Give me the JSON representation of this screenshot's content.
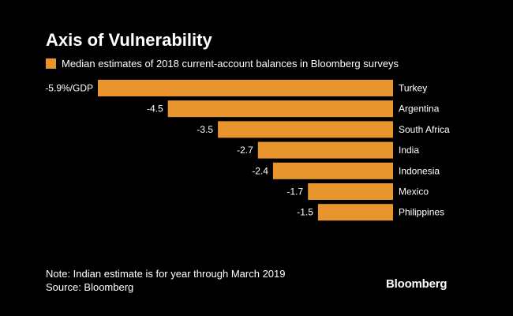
{
  "chart_data": {
    "type": "bar",
    "orientation": "horizontal",
    "title": "Axis of Vulnerability",
    "legend": "Median estimates of 2018 current-account balances in Bloomberg surveys",
    "unit_suffix": "%/GDP",
    "categories": [
      "Turkey",
      "Argentina",
      "South Africa",
      "India",
      "Indonesia",
      "Mexico",
      "Philippines"
    ],
    "values": [
      -5.9,
      -4.5,
      -3.5,
      -2.7,
      -2.4,
      -1.7,
      -1.5
    ],
    "value_labels": [
      "-5.9%/GDP",
      "-4.5",
      "-3.5",
      "-2.7",
      "-2.4",
      "-1.7",
      "-1.5"
    ],
    "xlim": [
      -5.9,
      0
    ],
    "color": "#e8952e",
    "grid": false,
    "xlabel": "",
    "ylabel": ""
  },
  "notes": {
    "note": "Note: Indian estimate is for year through March 2019",
    "source": "Source: Bloomberg"
  },
  "logo": "Bloomberg"
}
